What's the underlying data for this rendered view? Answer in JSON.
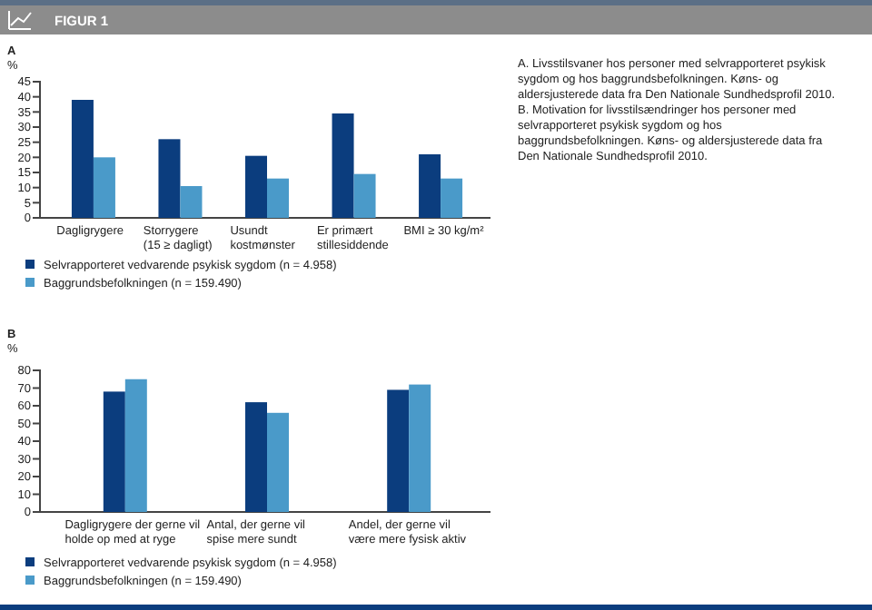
{
  "chart_data": [
    {
      "type": "bar",
      "title": "A",
      "ylabel": "%",
      "categories": [
        "Dagligrygere",
        "Storrygere\n(15 ≥ dagligt)",
        "Usundt\nkostmønster",
        "Er primært\nstillesiddende",
        "BMI ≥ 30 kg/m²"
      ],
      "series": [
        {
          "name": "Selvrapporteret vedvarende psykisk sygdom (n = 4.958)",
          "color": "#0b3d7e",
          "values": [
            39,
            26,
            20.5,
            34.5,
            21
          ]
        },
        {
          "name": "Baggrundsbefolkningen (n = 159.490)",
          "color": "#4a9ac9",
          "values": [
            20,
            10.5,
            13,
            14.5,
            13
          ]
        }
      ],
      "ylim": [
        0,
        45
      ],
      "yticks": [
        0,
        5,
        10,
        15,
        20,
        25,
        30,
        35,
        40,
        45
      ],
      "grid": false,
      "legend": "bottom",
      "annotations": [
        "FIGUR 1",
        "A. Livsstilsvaner hos personer med selvrapporteret psykisk sygdom og hos baggrundsbefolkningen. Køns- og aldersjusterede data fra Den Nationale Sundhedsprofil 2010.  B. Motivation for livsstilsændringer hos personer med selvrapporteret psykisk sygdom og hos baggrundsbefolkningen. Køns- og aldersjusterede data fra Den Nationale Sundhedsprofil 2010."
      ]
    },
    {
      "type": "bar",
      "title": "B",
      "ylabel": "%",
      "categories": [
        "Dagligrygere der gerne vil\nholde op med at ryge",
        "Antal, der gerne vil\nspise mere sundt",
        "Andel, der gerne vil\nvære mere fysisk aktiv"
      ],
      "series": [
        {
          "name": "Selvrapporteret vedvarende psykisk sygdom (n = 4.958)",
          "color": "#0b3d7e",
          "values": [
            68,
            62,
            69
          ]
        },
        {
          "name": "Baggrundsbefolkningen (n = 159.490)",
          "color": "#4a9ac9",
          "values": [
            75,
            56,
            72
          ]
        }
      ],
      "ylim": [
        0,
        80
      ],
      "yticks": [
        0,
        10,
        20,
        30,
        40,
        50,
        60,
        70,
        80
      ],
      "grid": false,
      "legend": "bottom"
    }
  ]
}
